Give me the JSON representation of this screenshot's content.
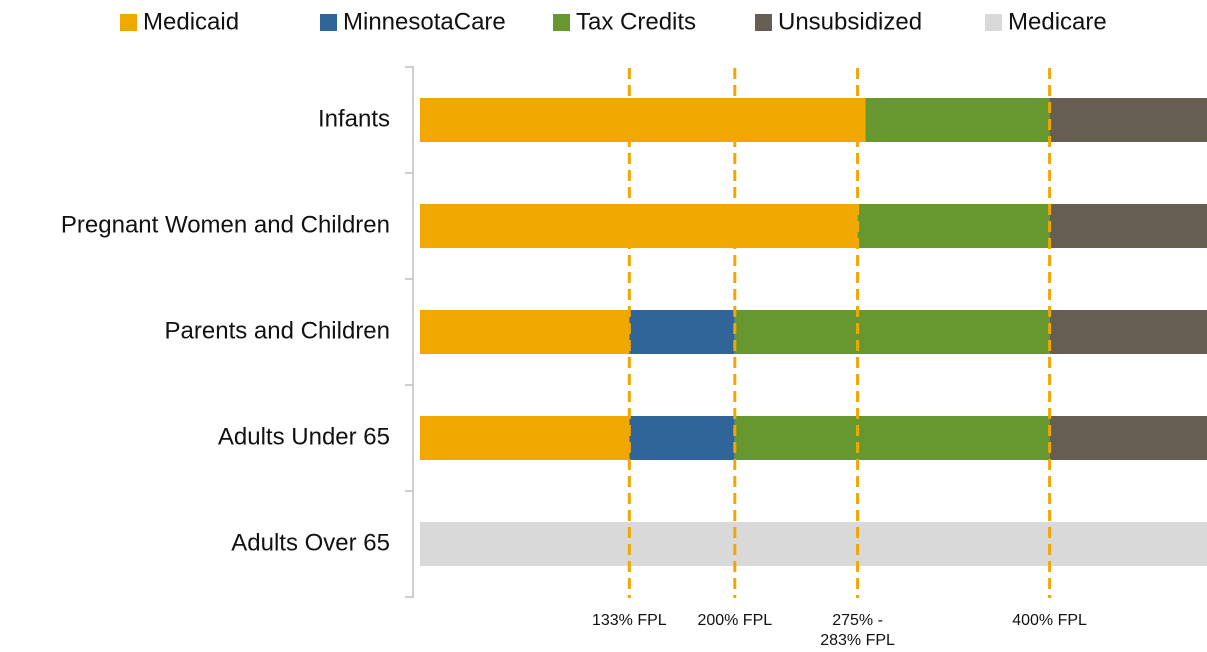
{
  "chart_data": {
    "type": "stacked-barh",
    "categories": [
      "Infants",
      "Pregnant Women and Children",
      "Parents and Children",
      "Adults Under 65",
      "Adults Over 65"
    ],
    "series": [
      {
        "name": "Medicaid",
        "color": "#f0a800",
        "values": [
          283,
          278,
          133,
          133,
          null
        ]
      },
      {
        "name": "MinnesotaCare",
        "color": "#30659a",
        "values": [
          null,
          null,
          67,
          67,
          null
        ]
      },
      {
        "name": "Tax Credits",
        "color": "#67982f",
        "values": [
          117,
          122,
          200,
          200,
          null
        ]
      },
      {
        "name": "Unsubsidized",
        "color": "#665e52",
        "values": [
          100,
          100,
          100,
          100,
          null
        ]
      },
      {
        "name": "Medicare",
        "color": "#d9d9d9",
        "values": [
          null,
          null,
          null,
          null,
          500
        ]
      }
    ],
    "xlim": [
      0,
      500
    ],
    "annotations": [
      {
        "value": 133,
        "label": [
          "133% FPL"
        ]
      },
      {
        "value": 200,
        "label": [
          "200% FPL"
        ]
      },
      {
        "value": 278,
        "label": [
          "275% -",
          "283% FPL"
        ]
      },
      {
        "value": 400,
        "label": [
          "400% FPL"
        ]
      }
    ],
    "annotation_color": "#f0a800",
    "legend": "top"
  }
}
